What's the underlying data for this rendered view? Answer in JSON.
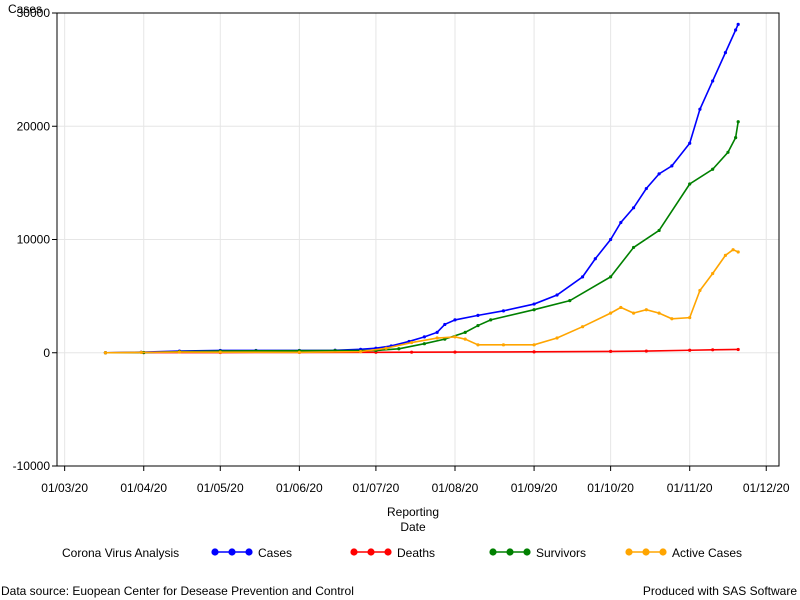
{
  "chart_data": {
    "type": "line",
    "title": "",
    "ylabel": "Cases",
    "xlabel": [
      "Reporting",
      "Date"
    ],
    "ylim": [
      -10000,
      30000
    ],
    "xlim": [
      "2020-02-27",
      "2020-12-06"
    ],
    "yticks": [
      -10000,
      0,
      10000,
      20000,
      30000
    ],
    "xticks": [
      {
        "date": "2020-03-01",
        "label": "01/03/20"
      },
      {
        "date": "2020-04-01",
        "label": "01/04/20"
      },
      {
        "date": "2020-05-01",
        "label": "01/05/20"
      },
      {
        "date": "2020-06-01",
        "label": "01/06/20"
      },
      {
        "date": "2020-07-01",
        "label": "01/07/20"
      },
      {
        "date": "2020-08-01",
        "label": "01/08/20"
      },
      {
        "date": "2020-09-01",
        "label": "01/09/20"
      },
      {
        "date": "2020-10-01",
        "label": "01/10/20"
      },
      {
        "date": "2020-11-01",
        "label": "01/11/20"
      },
      {
        "date": "2020-12-01",
        "label": "01/12/20"
      }
    ],
    "grid": true,
    "legend": {
      "title": "Corona Virus Analysis",
      "placement": "bottom"
    },
    "series": [
      {
        "name": "Cases",
        "color": "#0000ff",
        "points": [
          [
            "2020-03-17",
            0
          ],
          [
            "2020-03-31",
            50
          ],
          [
            "2020-04-15",
            150
          ],
          [
            "2020-05-01",
            200
          ],
          [
            "2020-05-15",
            200
          ],
          [
            "2020-06-01",
            200
          ],
          [
            "2020-06-15",
            220
          ],
          [
            "2020-06-25",
            300
          ],
          [
            "2020-07-01",
            400
          ],
          [
            "2020-07-07",
            600
          ],
          [
            "2020-07-14",
            1000
          ],
          [
            "2020-07-20",
            1400
          ],
          [
            "2020-07-25",
            1800
          ],
          [
            "2020-07-28",
            2500
          ],
          [
            "2020-08-01",
            2900
          ],
          [
            "2020-08-10",
            3300
          ],
          [
            "2020-08-20",
            3700
          ],
          [
            "2020-09-01",
            4300
          ],
          [
            "2020-09-10",
            5100
          ],
          [
            "2020-09-20",
            6700
          ],
          [
            "2020-09-25",
            8300
          ],
          [
            "2020-10-01",
            10000
          ],
          [
            "2020-10-05",
            11500
          ],
          [
            "2020-10-10",
            12800
          ],
          [
            "2020-10-15",
            14500
          ],
          [
            "2020-10-20",
            15800
          ],
          [
            "2020-10-25",
            16500
          ],
          [
            "2020-11-01",
            18500
          ],
          [
            "2020-11-05",
            21500
          ],
          [
            "2020-11-10",
            24000
          ],
          [
            "2020-11-15",
            26500
          ],
          [
            "2020-11-19",
            28500
          ],
          [
            "2020-11-20",
            29000
          ]
        ]
      },
      {
        "name": "Deaths",
        "color": "#ff0000",
        "points": [
          [
            "2020-03-17",
            0
          ],
          [
            "2020-04-01",
            10
          ],
          [
            "2020-05-01",
            20
          ],
          [
            "2020-06-01",
            30
          ],
          [
            "2020-07-01",
            40
          ],
          [
            "2020-07-15",
            50
          ],
          [
            "2020-08-01",
            60
          ],
          [
            "2020-09-01",
            80
          ],
          [
            "2020-10-01",
            120
          ],
          [
            "2020-10-15",
            150
          ],
          [
            "2020-11-01",
            220
          ],
          [
            "2020-11-10",
            260
          ],
          [
            "2020-11-20",
            290
          ]
        ]
      },
      {
        "name": "Survivors",
        "color": "#008000",
        "points": [
          [
            "2020-03-17",
            0
          ],
          [
            "2020-04-01",
            20
          ],
          [
            "2020-04-15",
            100
          ],
          [
            "2020-05-01",
            150
          ],
          [
            "2020-05-15",
            170
          ],
          [
            "2020-06-01",
            180
          ],
          [
            "2020-06-15",
            190
          ],
          [
            "2020-07-01",
            200
          ],
          [
            "2020-07-10",
            350
          ],
          [
            "2020-07-20",
            800
          ],
          [
            "2020-07-28",
            1200
          ],
          [
            "2020-08-05",
            1800
          ],
          [
            "2020-08-10",
            2400
          ],
          [
            "2020-08-15",
            2900
          ],
          [
            "2020-09-01",
            3800
          ],
          [
            "2020-09-15",
            4600
          ],
          [
            "2020-10-01",
            6700
          ],
          [
            "2020-10-10",
            9300
          ],
          [
            "2020-10-20",
            10800
          ],
          [
            "2020-11-01",
            14900
          ],
          [
            "2020-11-10",
            16200
          ],
          [
            "2020-11-16",
            17700
          ],
          [
            "2020-11-19",
            19000
          ],
          [
            "2020-11-20",
            20400
          ]
        ]
      },
      {
        "name": "Active Cases",
        "color": "#ffa500",
        "points": [
          [
            "2020-03-17",
            0
          ],
          [
            "2020-03-31",
            30
          ],
          [
            "2020-04-15",
            60
          ],
          [
            "2020-05-01",
            50
          ],
          [
            "2020-06-01",
            40
          ],
          [
            "2020-06-25",
            100
          ],
          [
            "2020-07-05",
            400
          ],
          [
            "2020-07-15",
            900
          ],
          [
            "2020-07-25",
            1300
          ],
          [
            "2020-08-01",
            1400
          ],
          [
            "2020-08-05",
            1200
          ],
          [
            "2020-08-10",
            700
          ],
          [
            "2020-08-20",
            700
          ],
          [
            "2020-09-01",
            700
          ],
          [
            "2020-09-10",
            1300
          ],
          [
            "2020-09-20",
            2300
          ],
          [
            "2020-10-01",
            3500
          ],
          [
            "2020-10-05",
            4000
          ],
          [
            "2020-10-10",
            3500
          ],
          [
            "2020-10-15",
            3800
          ],
          [
            "2020-10-20",
            3500
          ],
          [
            "2020-10-25",
            3000
          ],
          [
            "2020-11-01",
            3100
          ],
          [
            "2020-11-05",
            5500
          ],
          [
            "2020-11-10",
            7000
          ],
          [
            "2020-11-15",
            8600
          ],
          [
            "2020-11-18",
            9100
          ],
          [
            "2020-11-20",
            8900
          ]
        ]
      }
    ]
  },
  "footer": {
    "source": "Data source: Euopean Center for Desease Prevention and Control",
    "credit": "Produced with SAS Software"
  }
}
